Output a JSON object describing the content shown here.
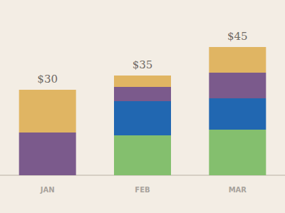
{
  "chart_data": {
    "type": "bar",
    "stacked": true,
    "categories": [
      "JAN",
      "FEB",
      "MAR"
    ],
    "series": [
      {
        "color": "#84bf6e",
        "values": [
          0,
          14,
          16
        ]
      },
      {
        "color": "#2167b1",
        "values": [
          0,
          12,
          11
        ]
      },
      {
        "color": "#7b5a8c",
        "values": [
          15,
          5,
          9
        ]
      },
      {
        "color": "#e0b563",
        "values": [
          15,
          4,
          9
        ]
      }
    ],
    "totals": [
      30,
      35,
      45
    ],
    "total_labels": [
      "$30",
      "$35",
      "$45"
    ],
    "ylim": [
      0,
      50
    ],
    "yticks": [
      0,
      50
    ],
    "grid": false,
    "tick_labels": "x"
  }
}
